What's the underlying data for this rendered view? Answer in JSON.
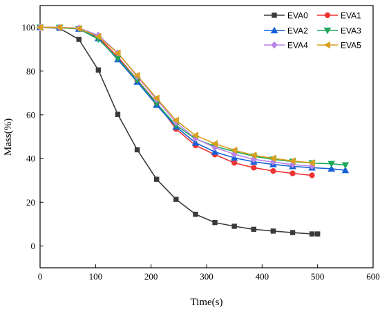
{
  "chart_data": {
    "type": "line",
    "title": "",
    "xlabel": "Time(s)",
    "ylabel": "Mass(%)",
    "xlim": [
      0,
      600
    ],
    "ylim": [
      -10,
      110
    ],
    "xticks": [
      0,
      100,
      200,
      300,
      400,
      500,
      600
    ],
    "yticks": [
      0,
      20,
      40,
      60,
      80,
      100
    ],
    "grid": false,
    "legend_position": "top-right",
    "series": [
      {
        "name": "EVA0",
        "color": "#3a3a3a",
        "marker": "square",
        "x": [
          0,
          35,
          70,
          105,
          140,
          175,
          210,
          245,
          280,
          315,
          350,
          385,
          420,
          455,
          490,
          500
        ],
        "y": [
          100,
          99.6,
          94.5,
          80.5,
          60.2,
          44,
          30.5,
          21.3,
          14.5,
          10.7,
          9,
          7.6,
          6.8,
          6.1,
          5.5,
          5.5
        ]
      },
      {
        "name": "EVA1",
        "color": "#ee3333",
        "marker": "circle",
        "x": [
          0,
          35,
          70,
          105,
          140,
          175,
          210,
          245,
          280,
          315,
          350,
          385,
          420,
          455,
          490
        ],
        "y": [
          100,
          99.9,
          99.4,
          95.5,
          86.5,
          76,
          65.5,
          53.5,
          46,
          41.8,
          38,
          35.8,
          34.3,
          33.2,
          32.3
        ]
      },
      {
        "name": "EVA2",
        "color": "#1560d8",
        "marker": "triangle-up",
        "x": [
          0,
          35,
          70,
          105,
          140,
          175,
          210,
          245,
          280,
          315,
          350,
          385,
          420,
          455,
          490,
          525,
          550
        ],
        "y": [
          100,
          99.9,
          99.3,
          95,
          85.3,
          75,
          64.5,
          54.5,
          47.2,
          43,
          40.3,
          38.5,
          37.3,
          36.4,
          35.8,
          35.3,
          34.6
        ]
      },
      {
        "name": "EVA3",
        "color": "#1fa85a",
        "marker": "triangle-down",
        "x": [
          0,
          35,
          70,
          105,
          140,
          175,
          210,
          245,
          280,
          315,
          350,
          385,
          420,
          455,
          490,
          525,
          550
        ],
        "y": [
          100,
          99.9,
          99.3,
          94.6,
          85.8,
          75.8,
          65.2,
          55.2,
          49,
          45.6,
          43.2,
          41,
          39.6,
          38.6,
          37.9,
          37.6,
          37
        ]
      },
      {
        "name": "EVA4",
        "color": "#b784e8",
        "marker": "diamond",
        "x": [
          0,
          35,
          70,
          105,
          140,
          175,
          210,
          245,
          280,
          315,
          350,
          385,
          420,
          455,
          490
        ],
        "y": [
          100,
          100,
          99.7,
          96.4,
          88.3,
          77.5,
          67,
          56.5,
          49.2,
          45,
          42,
          39.6,
          38.4,
          37.2,
          36.5
        ]
      },
      {
        "name": "EVA5",
        "color": "#d9a020",
        "marker": "triangle-left",
        "x": [
          0,
          35,
          70,
          105,
          140,
          175,
          210,
          245,
          280,
          315,
          350,
          385,
          420,
          455,
          490
        ],
        "y": [
          100,
          100,
          99.5,
          95.8,
          88.2,
          78,
          67.6,
          57.5,
          50.6,
          46.8,
          43.8,
          41.5,
          40.1,
          38.9,
          38
        ]
      }
    ]
  }
}
